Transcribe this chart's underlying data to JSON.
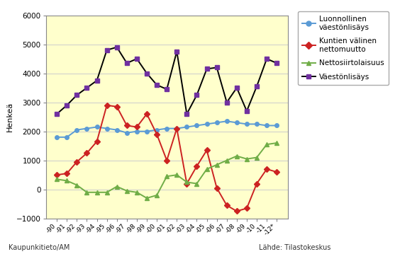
{
  "x_labels": [
    "-90",
    "-91",
    "-92",
    "-93",
    "-94",
    "-95",
    "-96",
    "-97",
    "-98",
    "-99",
    "-00",
    "-01",
    "-02",
    "-03",
    "-04",
    "-05",
    "-06",
    "-07",
    "-08",
    "-09",
    "-10",
    "-11",
    "-12*"
  ],
  "luonnollinen": [
    1800,
    1800,
    2050,
    2100,
    2150,
    2100,
    2050,
    1950,
    2000,
    2000,
    2050,
    2100,
    2100,
    2150,
    2200,
    2250,
    2300,
    2350,
    2300,
    2250,
    2250,
    2200,
    2200
  ],
  "kuntien_valinen": [
    500,
    550,
    950,
    1250,
    1650,
    2900,
    2850,
    2200,
    2150,
    2600,
    1900,
    1000,
    2100,
    200,
    800,
    1350,
    50,
    -550,
    -750,
    -650,
    200,
    700,
    600
  ],
  "nettosiirtolaisuus": [
    350,
    300,
    150,
    -100,
    -100,
    -100,
    100,
    -50,
    -100,
    -300,
    -200,
    450,
    500,
    250,
    200,
    700,
    850,
    1000,
    1150,
    1050,
    1100,
    1550,
    1600
  ],
  "vaestonlisays": [
    2600,
    2900,
    3250,
    3500,
    3750,
    4800,
    4900,
    4350,
    4500,
    4000,
    3600,
    3450,
    4750,
    2600,
    3250,
    4150,
    4200,
    3000,
    3500,
    2700,
    3550,
    4500,
    4350
  ],
  "line_colors": {
    "luonnollinen": "#5B9BD5",
    "kuntien_valinen": "#CC2222",
    "nettosiirtolaisuus": "#70AD47",
    "vaestonlisays": "#000000"
  },
  "marker_colors": {
    "luonnollinen": "#5B9BD5",
    "kuntien_valinen": "#CC2222",
    "nettosiirtolaisuus": "#70AD47",
    "vaestonlisays": "#7030A0"
  },
  "marker_styles": {
    "luonnollinen": "o",
    "kuntien_valinen": "D",
    "nettosiirtolaisuus": "^",
    "vaestonlisays": "s"
  },
  "legend_labels": {
    "luonnollinen": "Luonnollinen\nväestönlisäys",
    "kuntien_valinen": "Kuntien välinen\nnettomuutto",
    "nettosiirtolaisuus": "Nettosiirtolaisuus",
    "vaestonlisays": "Väestönlisäys"
  },
  "ylabel": "Henkeä",
  "ylim": [
    -1000,
    6000
  ],
  "yticks": [
    -1000,
    0,
    1000,
    2000,
    3000,
    4000,
    5000,
    6000
  ],
  "background_color": "#FFFFCC",
  "grid_color": "#CCCCCC",
  "footer_left": "Kaupunkitieto/AM",
  "footer_right": "Lähde: Tilastokeskus",
  "marker_size": 4,
  "line_width": 1.4
}
